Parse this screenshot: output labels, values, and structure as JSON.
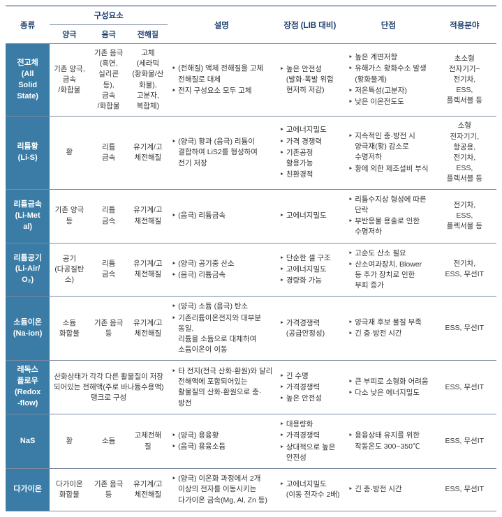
{
  "colors": {
    "header_text": "#1a3d6b",
    "type_bg": "#3a7ca5",
    "type_fg": "#ffffff",
    "border": "#7a8aa0",
    "body_text": "#333333",
    "background": "#ffffff"
  },
  "fonts": {
    "family": "Malgun Gothic",
    "header_size": 11.5,
    "sub_header_size": 11,
    "body_size": 10.5
  },
  "header": {
    "type": "종류",
    "components": "구성요소",
    "anode": "양극",
    "cathode": "음극",
    "electrolyte": "전해질",
    "desc": "설명",
    "pros": "장점 (LIB 대비)",
    "cons": "단점",
    "field": "적용분야"
  },
  "rows": [
    {
      "type": "전고체\n(All\nSolid\nState)",
      "anode": "기존 양극,\n금속\n/화합물",
      "cathode": "기존 음극\n(흑연,\n실리콘\n등),\n금속\n/화합물",
      "electrolyte": "고체\n(세라믹\n(황화물/산\n화물),\n고분자,\n복합체)",
      "desc": [
        "(전해질) 액체 전해질을 고체 전해질로 대체",
        "전지 구성요소 모두 고체"
      ],
      "pros": [
        "높은 안전성\n(발화·폭발 위험 현저히 저감)"
      ],
      "cons": [
        "높은 계면저항",
        "유해가스 황화수소 발생(황화물계)",
        "저온특성(고분자)",
        "낮은 이온전도도"
      ],
      "field": "초소형\n전자기기~\n전기차,\nESS,\n플렉서블 등"
    },
    {
      "type": "리튬황\n(Li-S)",
      "anode": "황",
      "cathode": "리튬\n금속",
      "electrolyte": "유기계/고\n체전해질",
      "desc": [
        "(양극) 황과 (음극) 리튬이 결합하여 LiS2를 형성하여 전기 저장"
      ],
      "pros": [
        "고에너지밀도",
        "가격 경쟁력",
        "기존공정 활용가능",
        "친환경적"
      ],
      "cons": [
        "지속적인  충·방전 시 양극재(황) 감소로 수명저하",
        "황에 의한 제조설비 부식"
      ],
      "field": "소형\n전자기기,\n항공용,\n전기차,\nESS,\n플렉서블 등"
    },
    {
      "type": "리튬금속\n(Li-Met\nal)",
      "anode": "기존 양극\n등",
      "cathode": "리튬\n금속",
      "electrolyte": "유기계/고\n체전해질",
      "desc": [
        "(음극) 리튬금속"
      ],
      "pros": [
        "고에너지밀도"
      ],
      "cons": [
        "리튬수지상 형성에 따른 단락",
        "부반응물  용출로 인한 수명저하"
      ],
      "field": "전기차,\nESS,\n플렉서블 등"
    },
    {
      "type": "리튬공기\n(Li-Air/\nO₂)",
      "anode": "공기\n(다공질탄\n소)",
      "cathode": "리튬\n금속",
      "electrolyte": "유기계/고\n체전해질",
      "desc": [
        "(양극) 공기중 산소",
        "(음극) 리튬금속"
      ],
      "pros": [
        "단순한 셀 구조",
        "고에너지밀도",
        "경량화 가능"
      ],
      "cons": [
        "고순도 산소 필요",
        "산소여과장치, Blower 등 추가 장치로 인한 부피 증가"
      ],
      "field": "전기차,\nESS, 무선IT"
    },
    {
      "type": "소듐이온\n(Na-ion)",
      "anode": "소듐\n화합물",
      "cathode": "기존 음극\n등",
      "electrolyte": "유기계/고\n체전해질",
      "desc": [
        "(양극) 소듐 (음극) 탄소",
        "기존리튬이온전지와 대부분 동일,\n리튬을 소듐으로 대체하여 소듐이온이 이동"
      ],
      "pros": [
        "가격경쟁력\n(공급안정성)"
      ],
      "cons": [
        "양극재 후보 물질 부족",
        "긴 충·방전 시간"
      ],
      "field": "ESS, 무선IT"
    },
    {
      "type": "레독스\n플로우\n(Redox\n-flow)",
      "components_merged": "산화상태가 각각 다른 활물질이 저장되어있는 전해액(주로 바나듐수용액) 탱크로 구성",
      "desc": [
        "타 전지(전극 산화·환원)와 달리 전해액에 포함되어있는  활물질의 산화·환원으로 충·방전"
      ],
      "pros": [
        "긴 수명",
        "가격경쟁력",
        "높은 안전성"
      ],
      "cons": [
        "큰  부피로  소형화 어려움",
        "다소  낮은  에너지밀도"
      ],
      "field": "ESS, 무선IT"
    },
    {
      "type": "NaS",
      "anode": "황",
      "cathode": "소듐",
      "electrolyte": "고체전해질",
      "desc": [
        "(양극) 용융황",
        "(음극) 용융소듐"
      ],
      "pros": [
        "대용량화",
        "가격경쟁력",
        "상대적으로 높은 안전성"
      ],
      "cons": [
        "용융상태   유지를 위한 작동온도 300~350℃"
      ],
      "field": "ESS, 무선IT"
    },
    {
      "type": "다가이온",
      "anode": "다가이온\n화합물",
      "cathode": "기존 음극\n등",
      "electrolyte": "유기계/고\n체전해질",
      "desc": [
        "(양극) 이온화 과정에서 2개 이상의 전자를 이동시키는 다가이온 금속(Mg, Al, Zn 등)"
      ],
      "pros": [
        "고에너지밀도\n(이동 전자수 2배)"
      ],
      "cons": [
        "긴 충·방전 시간"
      ],
      "field": "ESS, 무선IT"
    }
  ]
}
